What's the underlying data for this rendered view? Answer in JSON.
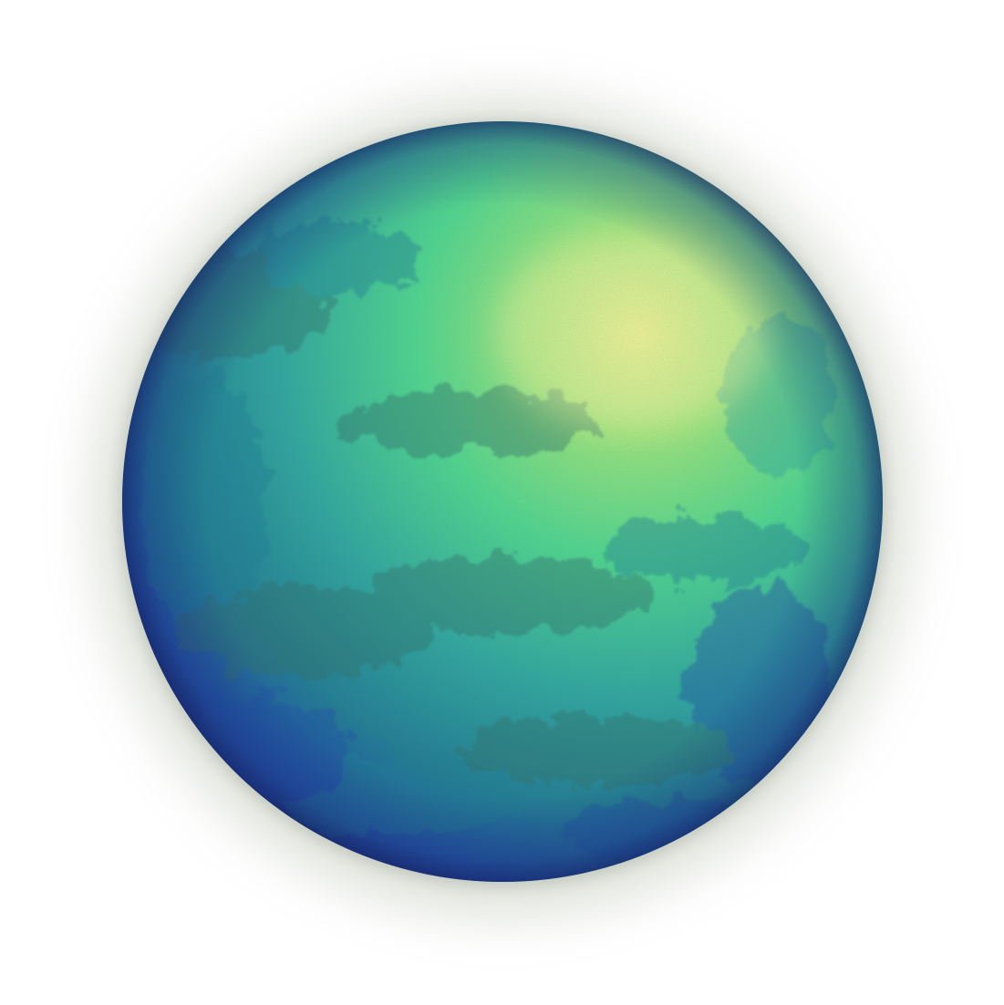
{
  "image": {
    "subject": "watercolor-orb",
    "colors": {
      "background": "#ffffff",
      "highlight": "#f2f58a",
      "lime": "#9fe87a",
      "green": "#4fd98f",
      "teal": "#2ea8a0",
      "deep_teal": "#1f7f95",
      "blue": "#1b4fa6",
      "navy": "#14237a",
      "stain": "#2f6f6a",
      "shadow": "#7d8c6e"
    }
  }
}
